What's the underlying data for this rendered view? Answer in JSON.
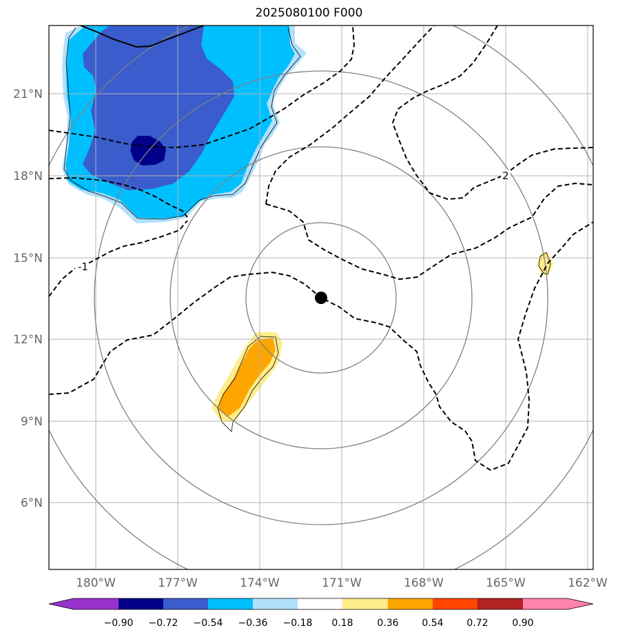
{
  "title": "2025080100 F000",
  "map": {
    "lon_labels": [
      "180°W",
      "177°W",
      "174°W",
      "171°W",
      "168°W",
      "165°W",
      "162°W"
    ],
    "lat_labels": [
      "21°N",
      "18°N",
      "15°N",
      "12°N",
      "9°N",
      "6°N"
    ],
    "storm_center_icon": "filled-circle",
    "range_rings": 4,
    "contour_labels": [
      "-1",
      "2"
    ]
  },
  "colorbar": {
    "ticks": [
      "−0.90",
      "−0.72",
      "−0.54",
      "−0.36",
      "−0.18",
      "0.18",
      "0.36",
      "0.54",
      "0.72",
      "0.90"
    ],
    "colors": [
      "#9932cc",
      "#00008b",
      "#3a5ccc",
      "#00bfff",
      "#b0e0fb",
      "#ffffff",
      "#ffec8b",
      "#ffa500",
      "#ff4500",
      "#b22222",
      "#ff82ab"
    ]
  }
}
